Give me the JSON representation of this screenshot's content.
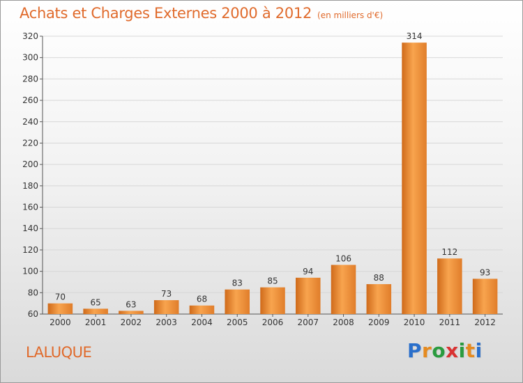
{
  "title": "Achats et Charges Externes 2000 à 2012",
  "subtitle": "(en milliers d'€)",
  "commune": "LALUQUE",
  "logo": {
    "letters": [
      "P",
      "r",
      "o",
      "x",
      "i",
      "t",
      "i"
    ],
    "colors": [
      "#2a6fcb",
      "#e58a1f",
      "#2a9b3f",
      "#d93232",
      "#2a9b3f",
      "#e58a1f",
      "#2a6fcb"
    ]
  },
  "colors": {
    "accent": "#e06a2b",
    "bar_light": "#f8a44e",
    "bar_dark": "#cf6a1a"
  },
  "chart_data": {
    "type": "bar",
    "categories": [
      "2000",
      "2001",
      "2002",
      "2003",
      "2004",
      "2005",
      "2006",
      "2007",
      "2008",
      "2009",
      "2010",
      "2011",
      "2012"
    ],
    "values": [
      70,
      65,
      63,
      73,
      68,
      83,
      85,
      94,
      106,
      88,
      314,
      112,
      93
    ],
    "value_labels": [
      "70",
      "65",
      "63",
      "73",
      "68",
      "83",
      "85",
      "94",
      "106",
      "88",
      "314",
      "112",
      "93"
    ],
    "ylim": [
      60,
      320
    ],
    "yticks": [
      "60",
      "80",
      "100",
      "120",
      "140",
      "160",
      "180",
      "200",
      "220",
      "240",
      "260",
      "280",
      "300",
      "320"
    ],
    "grid": true
  }
}
